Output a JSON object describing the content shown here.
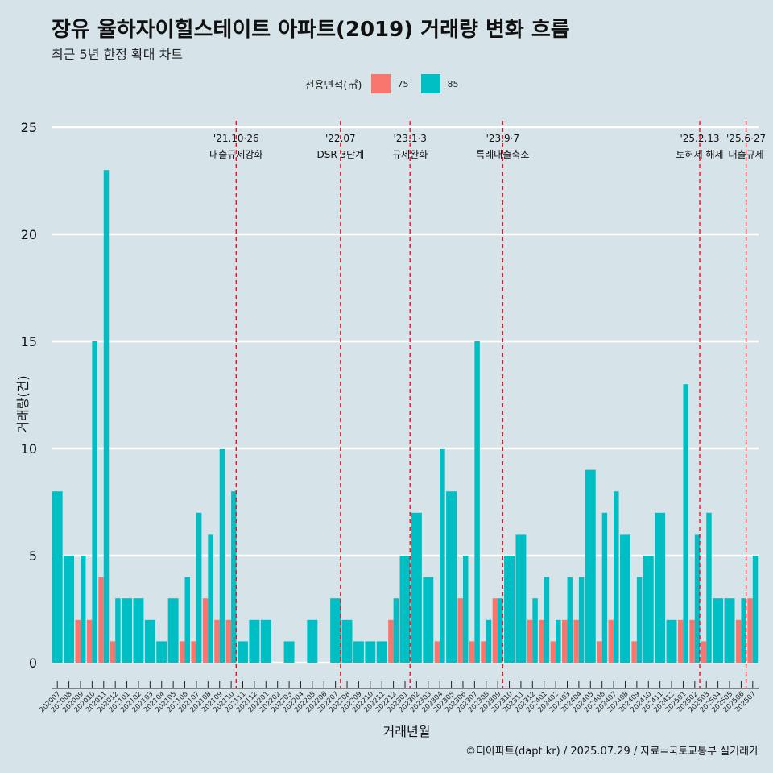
{
  "header": {
    "title": "장유 율하자이힐스테이트 아파트(2019) 거래량 변화 흐름",
    "subtitle": "최근 5년 한정 확대 차트"
  },
  "legend": {
    "title": "전용면적(㎡)",
    "items": [
      {
        "label": "75",
        "color": "#f8766d"
      },
      {
        "label": "85",
        "color": "#00bfc4"
      }
    ]
  },
  "footer": {
    "caption": "©디아파트(dapt.kr) / 2025.07.29 / 자료=국토교통부 실거래가"
  },
  "chart_data": {
    "type": "bar",
    "stacked": false,
    "xlabel": "거래년월",
    "ylabel": "거래량(건)",
    "ylim": [
      -1,
      25.5
    ],
    "yticks": [
      0,
      5,
      10,
      15,
      20,
      25
    ],
    "grid": true,
    "legend_position": "top",
    "categories": [
      "202007",
      "202008",
      "202009",
      "202010",
      "202011",
      "202012",
      "202101",
      "202102",
      "202103",
      "202104",
      "202105",
      "202106",
      "202107",
      "202108",
      "202109",
      "202110",
      "202111",
      "202112",
      "202201",
      "202202",
      "202203",
      "202204",
      "202205",
      "202206",
      "202207",
      "202208",
      "202209",
      "202210",
      "202211",
      "202212",
      "202301",
      "202302",
      "202303",
      "202304",
      "202305",
      "202306",
      "202307",
      "202308",
      "202309",
      "202310",
      "202311",
      "202312",
      "202401",
      "202402",
      "202403",
      "202404",
      "202405",
      "202406",
      "202407",
      "202408",
      "202409",
      "202410",
      "202411",
      "202412",
      "202501",
      "202502",
      "202503",
      "202504",
      "202505",
      "202506",
      "202507"
    ],
    "series": [
      {
        "name": "75",
        "color": "#f8766d",
        "values": [
          null,
          null,
          2,
          2,
          4,
          1,
          null,
          null,
          null,
          null,
          null,
          1,
          1,
          3,
          2,
          2,
          null,
          null,
          null,
          null,
          null,
          null,
          null,
          null,
          null,
          null,
          null,
          null,
          null,
          2,
          null,
          null,
          null,
          1,
          null,
          3,
          1,
          1,
          3,
          null,
          null,
          2,
          2,
          1,
          2,
          2,
          null,
          1,
          2,
          null,
          1,
          null,
          null,
          null,
          2,
          2,
          1,
          null,
          null,
          2,
          3
        ]
      },
      {
        "name": "85",
        "color": "#00bfc4",
        "values": [
          8,
          5,
          5,
          15,
          23,
          3,
          3,
          3,
          2,
          1,
          3,
          4,
          7,
          6,
          10,
          8,
          1,
          2,
          2,
          null,
          1,
          null,
          2,
          null,
          3,
          2,
          1,
          1,
          1,
          3,
          5,
          7,
          4,
          10,
          8,
          5,
          15,
          2,
          3,
          5,
          6,
          3,
          4,
          2,
          4,
          4,
          9,
          7,
          8,
          6,
          4,
          5,
          7,
          2,
          13,
          6,
          7,
          3,
          3,
          3,
          5
        ]
      }
    ],
    "annotations": [
      {
        "category": "202110",
        "label_top": "'21.10·26",
        "label_bottom": "대출규제강화"
      },
      {
        "category": "202207",
        "label_top": "'22.07",
        "label_bottom": "DSR 3단계"
      },
      {
        "category": "202301",
        "label_top": "'23.1·3",
        "label_bottom": "규제완화"
      },
      {
        "category": "202309",
        "label_top": "'23.9·7",
        "label_bottom": "특례대출축소"
      },
      {
        "category": "202502",
        "label_top": "'25.2.13",
        "label_bottom": "토허제 해제"
      },
      {
        "category": "202506",
        "label_top": "'25.6·27",
        "label_bottom": "대출규제"
      }
    ]
  }
}
